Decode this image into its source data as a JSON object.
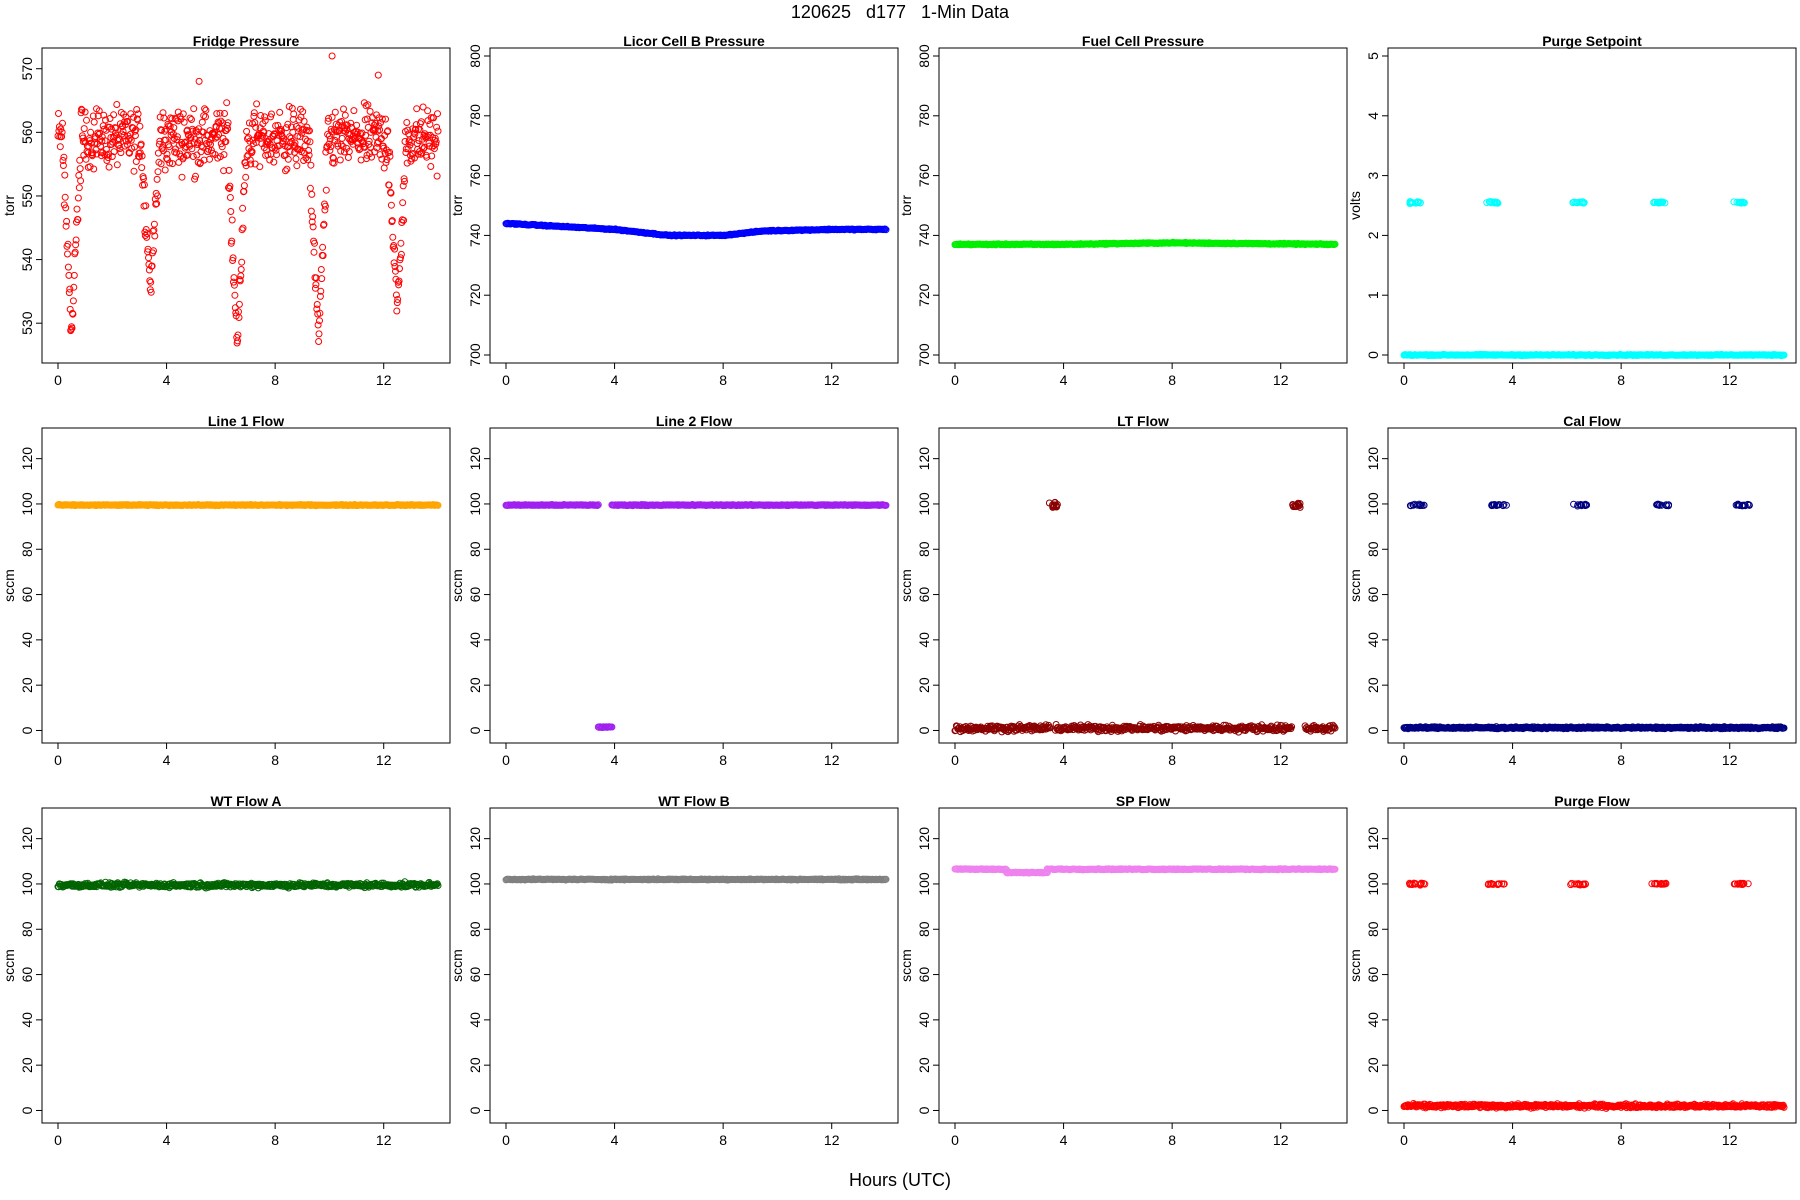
{
  "page_title": "120625   d177   1-Min Data",
  "x_axis_label": "Hours (UTC)",
  "chart_data": [
    {
      "type": "scatter",
      "title": "Fridge Pressure",
      "ylabel": "torr",
      "color": "#ff0000",
      "xlim": [
        0,
        14
      ],
      "ylim": [
        525,
        572
      ],
      "x_ticks": [
        0,
        4,
        8,
        12
      ],
      "y_ticks": [
        530,
        540,
        550,
        560,
        570
      ],
      "series": [
        {
          "pattern": "noise",
          "base": 559,
          "spread": 5,
          "x_range": [
            0,
            14
          ],
          "dips": [
            [
              0.5,
              528
            ],
            [
              3.4,
              535
            ],
            [
              6.6,
              526
            ],
            [
              9.6,
              527
            ],
            [
              12.5,
              532
            ]
          ],
          "outliers": [
            [
              10.1,
              572
            ],
            [
              5.2,
              568
            ],
            [
              11.8,
              569
            ]
          ]
        }
      ]
    },
    {
      "type": "scatter",
      "title": "Licor Cell B Pressure",
      "ylabel": "torr",
      "color": "#0000ff",
      "xlim": [
        0,
        14
      ],
      "ylim": [
        700,
        800
      ],
      "x_ticks": [
        0,
        4,
        8,
        12
      ],
      "y_ticks": [
        700,
        720,
        740,
        760,
        780,
        800
      ],
      "series": [
        {
          "pattern": "line",
          "points": [
            [
              0,
              744
            ],
            [
              2,
              743
            ],
            [
              4,
              742
            ],
            [
              6,
              740
            ],
            [
              8,
              740
            ],
            [
              9.5,
              741.5
            ],
            [
              12,
              742
            ],
            [
              14,
              742
            ]
          ],
          "x_range": [
            0,
            14
          ]
        }
      ]
    },
    {
      "type": "scatter",
      "title": "Fuel Cell Pressure",
      "ylabel": "torr",
      "color": "#00ee00",
      "xlim": [
        0,
        14
      ],
      "ylim": [
        700,
        800
      ],
      "x_ticks": [
        0,
        4,
        8,
        12
      ],
      "y_ticks": [
        700,
        720,
        740,
        760,
        780,
        800
      ],
      "series": [
        {
          "pattern": "line",
          "points": [
            [
              0,
              737
            ],
            [
              4,
              737
            ],
            [
              8,
              737.5
            ],
            [
              14,
              737
            ]
          ],
          "x_range": [
            0,
            14
          ]
        }
      ]
    },
    {
      "type": "scatter",
      "title": "Purge Setpoint",
      "ylabel": "volts",
      "color": "#00ffff",
      "xlim": [
        0,
        14
      ],
      "ylim": [
        0,
        5
      ],
      "x_ticks": [
        0,
        4,
        8,
        12
      ],
      "y_ticks": [
        0,
        1,
        2,
        3,
        4,
        5
      ],
      "series": [
        {
          "pattern": "line",
          "points": [
            [
              0,
              0
            ],
            [
              14,
              0
            ]
          ],
          "x_range": [
            0,
            14
          ]
        },
        {
          "pattern": "clusters",
          "centers": [
            0.4,
            3.3,
            6.4,
            9.4,
            12.4
          ],
          "value": 2.55,
          "width": 0.5
        }
      ]
    },
    {
      "type": "scatter",
      "title": "Line 1 Flow",
      "ylabel": "sccm",
      "color": "#ffa500",
      "xlim": [
        0,
        14
      ],
      "ylim": [
        -2,
        130
      ],
      "x_ticks": [
        0,
        4,
        8,
        12
      ],
      "y_ticks": [
        0,
        20,
        40,
        60,
        80,
        100,
        120
      ],
      "series": [
        {
          "pattern": "line",
          "points": [
            [
              0,
              99.5
            ],
            [
              14,
              99.5
            ]
          ],
          "x_range": [
            0,
            14
          ]
        }
      ]
    },
    {
      "type": "scatter",
      "title": "Line 2 Flow",
      "ylabel": "sccm",
      "color": "#a020f0",
      "xlim": [
        0,
        14
      ],
      "ylim": [
        -2,
        130
      ],
      "x_ticks": [
        0,
        4,
        8,
        12
      ],
      "y_ticks": [
        0,
        20,
        40,
        60,
        80,
        100,
        120
      ],
      "series": [
        {
          "pattern": "line",
          "points": [
            [
              0,
              99.5
            ],
            [
              3.4,
              99.5
            ]
          ],
          "x_range": [
            0,
            3.4
          ]
        },
        {
          "pattern": "line",
          "points": [
            [
              3.4,
              1.5
            ],
            [
              3.9,
              1.5
            ]
          ],
          "x_range": [
            3.4,
            3.9
          ]
        },
        {
          "pattern": "line",
          "points": [
            [
              3.9,
              99.5
            ],
            [
              14,
              99.5
            ]
          ],
          "x_range": [
            3.9,
            14
          ]
        }
      ]
    },
    {
      "type": "scatter",
      "title": "LT Flow",
      "ylabel": "sccm",
      "color": "#8b0000",
      "xlim": [
        0,
        14
      ],
      "ylim": [
        -2,
        130
      ],
      "x_ticks": [
        0,
        4,
        8,
        12
      ],
      "y_ticks": [
        0,
        20,
        40,
        60,
        80,
        100,
        120
      ],
      "series": [
        {
          "pattern": "band",
          "value": 1,
          "spread": 2,
          "x_range": [
            0,
            3.5
          ]
        },
        {
          "pattern": "band",
          "value": 1,
          "spread": 2,
          "x_range": [
            3.7,
            12.4
          ]
        },
        {
          "pattern": "band",
          "value": 1,
          "spread": 2,
          "x_range": [
            12.9,
            14
          ]
        },
        {
          "pattern": "clusters",
          "centers": [
            3.6,
            12.6
          ],
          "value": 99.5,
          "width": 0.35,
          "spread": 2
        }
      ]
    },
    {
      "type": "scatter",
      "title": "Cal Flow",
      "ylabel": "sccm",
      "color": "#000080",
      "xlim": [
        0,
        14
      ],
      "ylim": [
        -2,
        130
      ],
      "x_ticks": [
        0,
        4,
        8,
        12
      ],
      "y_ticks": [
        0,
        20,
        40,
        60,
        80,
        100,
        120
      ],
      "series": [
        {
          "pattern": "band",
          "value": 1.2,
          "spread": 0.6,
          "x_range": [
            0,
            14
          ]
        },
        {
          "pattern": "clusters",
          "centers": [
            0.5,
            3.5,
            6.5,
            9.5,
            12.5
          ],
          "value": 99.5,
          "width": 0.55
        }
      ]
    },
    {
      "type": "scatter",
      "title": "WT Flow A",
      "ylabel": "sccm",
      "color": "#006400",
      "xlim": [
        0,
        14
      ],
      "ylim": [
        -2,
        130
      ],
      "x_ticks": [
        0,
        4,
        8,
        12
      ],
      "y_ticks": [
        0,
        20,
        40,
        60,
        80,
        100,
        120
      ],
      "series": [
        {
          "pattern": "band",
          "value": 99.5,
          "spread": 1.5,
          "x_range": [
            0,
            14
          ]
        }
      ]
    },
    {
      "type": "scatter",
      "title": "WT Flow B",
      "ylabel": "sccm",
      "color": "#808080",
      "xlim": [
        0,
        14
      ],
      "ylim": [
        -2,
        130
      ],
      "x_ticks": [
        0,
        4,
        8,
        12
      ],
      "y_ticks": [
        0,
        20,
        40,
        60,
        80,
        100,
        120
      ],
      "series": [
        {
          "pattern": "line",
          "points": [
            [
              0,
              102
            ],
            [
              14,
              102
            ]
          ],
          "x_range": [
            0,
            14
          ]
        }
      ]
    },
    {
      "type": "scatter",
      "title": "SP Flow",
      "ylabel": "sccm",
      "color": "#ee82ee",
      "xlim": [
        0,
        14
      ],
      "ylim": [
        -2,
        130
      ],
      "x_ticks": [
        0,
        4,
        8,
        12
      ],
      "y_ticks": [
        0,
        20,
        40,
        60,
        80,
        100,
        120
      ],
      "series": [
        {
          "pattern": "line",
          "points": [
            [
              0,
              106.5
            ],
            [
              1.9,
              106.5
            ]
          ],
          "x_range": [
            0,
            1.9
          ]
        },
        {
          "pattern": "line",
          "points": [
            [
              1.9,
              105
            ],
            [
              3.4,
              105
            ]
          ],
          "x_range": [
            1.9,
            3.4
          ]
        },
        {
          "pattern": "line",
          "points": [
            [
              3.4,
              106.5
            ],
            [
              14,
              106.5
            ]
          ],
          "x_range": [
            3.4,
            14
          ]
        }
      ]
    },
    {
      "type": "scatter",
      "title": "Purge Flow",
      "ylabel": "sccm",
      "color": "#ff0000",
      "xlim": [
        0,
        14
      ],
      "ylim": [
        -2,
        130
      ],
      "x_ticks": [
        0,
        4,
        8,
        12
      ],
      "y_ticks": [
        0,
        20,
        40,
        60,
        80,
        100,
        120
      ],
      "series": [
        {
          "pattern": "band",
          "value": 2,
          "spread": 1.2,
          "x_range": [
            0,
            14
          ]
        },
        {
          "pattern": "clusters",
          "centers": [
            0.5,
            3.4,
            6.4,
            9.4,
            12.4
          ],
          "value": 100,
          "width": 0.6
        }
      ]
    }
  ]
}
